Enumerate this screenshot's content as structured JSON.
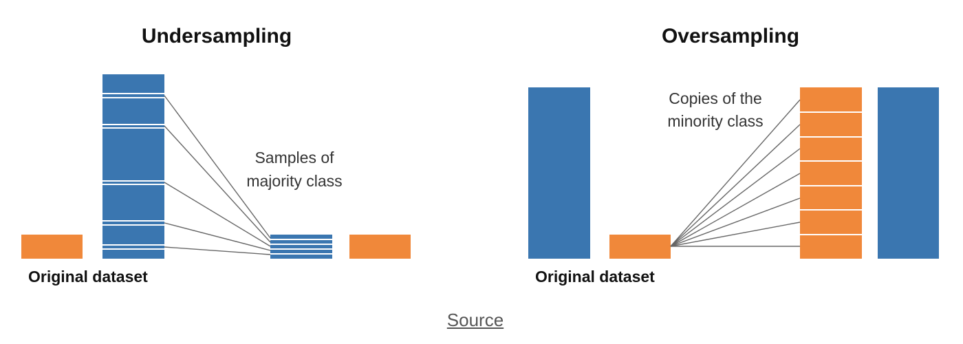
{
  "colors": {
    "majority": "#3a76b0",
    "minority": "#f0883a",
    "divider": "#ffffff",
    "connector": "#666666"
  },
  "undersampling": {
    "title": "Undersampling",
    "dataset_label": "Original dataset",
    "note_line1": "Samples of",
    "note_line2": "majority class"
  },
  "oversampling": {
    "title": "Oversampling",
    "dataset_label": "Original dataset",
    "note_line1": "Copies of the",
    "note_line2": "minority class"
  },
  "footer": {
    "source_label": "Source"
  }
}
